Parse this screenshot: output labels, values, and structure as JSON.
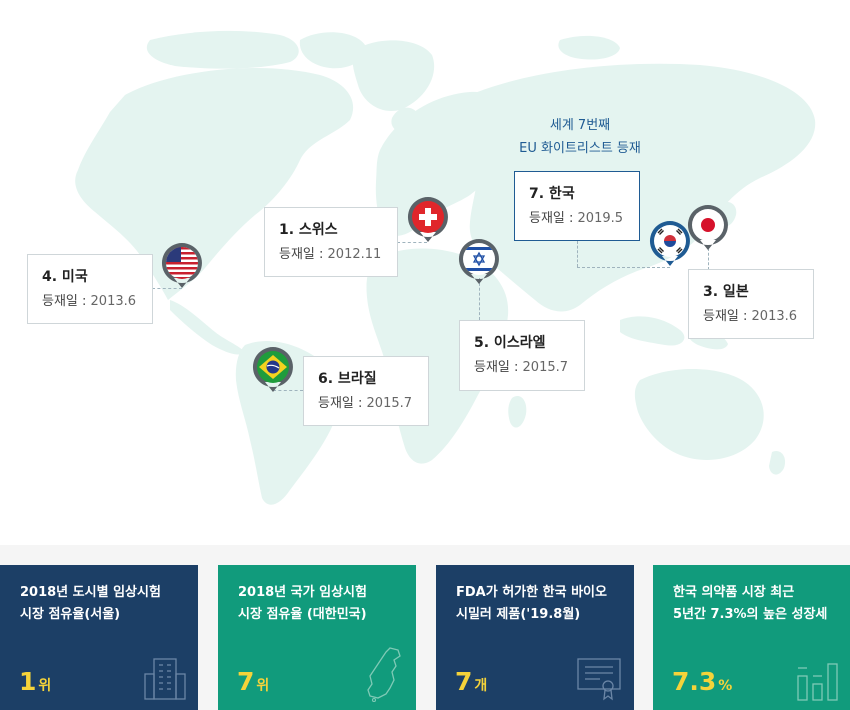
{
  "map": {
    "eu_note_line1": "세계 7번째",
    "eu_note_line2": "EU 화이트리스트 등재",
    "countries": [
      {
        "id": "switzerland",
        "name": "1. 스위스",
        "date_label": "등재일 : ",
        "date_value": "2012.11",
        "flag": "switzerland-flag-icon"
      },
      {
        "id": "japan",
        "name": "3. 일본",
        "date_label": "등재일 : ",
        "date_value": "2013.6",
        "flag": "japan-flag-icon"
      },
      {
        "id": "usa",
        "name": "4. 미국",
        "date_label": "등재일 : ",
        "date_value": "2013.6",
        "flag": "usa-flag-icon"
      },
      {
        "id": "israel",
        "name": "5. 이스라엘",
        "date_label": "등재일 : ",
        "date_value": "2015.7",
        "flag": "israel-flag-icon"
      },
      {
        "id": "brazil",
        "name": "6. 브라질",
        "date_label": "등재일 : ",
        "date_value": "2015.7",
        "flag": "brazil-flag-icon"
      },
      {
        "id": "korea",
        "name": "7. 한국",
        "date_label": "등재일 : ",
        "date_value": "2019.5",
        "flag": "korea-flag-icon"
      }
    ],
    "colors": {
      "land": "#e4f4f0",
      "pin": "#5a6268",
      "highlight": "#1f5b93"
    }
  },
  "stats": [
    {
      "title1": "2018년 도시별 임상시험",
      "title2": "시장 점유율(서울)",
      "value": "1",
      "unit": "위",
      "icon": "building-icon",
      "color": "#1c3f66"
    },
    {
      "title1": "2018년 국가 임상시험",
      "title2": "시장 점유율 (대한민국)",
      "value": "7",
      "unit": "위",
      "icon": "korea-map-icon",
      "color": "#119b7c"
    },
    {
      "title1": "FDA가 허가한 한국 바이오",
      "title2": "시밀러 제품('19.8월)",
      "value": "7",
      "unit": "개",
      "icon": "certificate-icon",
      "color": "#1c3f66"
    },
    {
      "title1": "한국 의약품 시장 최근",
      "title2": "5년간 7.3%의 높은 성장세",
      "value": "7.3",
      "unit": "%",
      "icon": "bar-chart-icon",
      "color": "#119b7c"
    }
  ]
}
